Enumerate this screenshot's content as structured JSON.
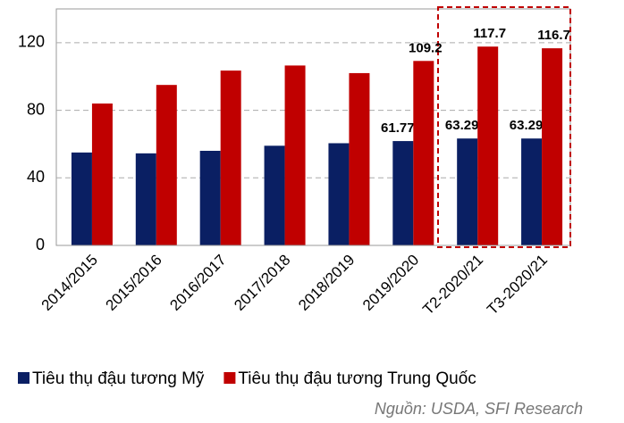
{
  "chart_data": {
    "type": "bar",
    "categories": [
      "2014/2015",
      "2015/2016",
      "2016/2017",
      "2017/2018",
      "2018/2019",
      "2019/2020",
      "T2-2020/21",
      "T3-2020/21"
    ],
    "series": [
      {
        "name": "Tiêu thụ đậu tương Mỹ",
        "color": "#0a1f63",
        "values": [
          55,
          54.5,
          56,
          59,
          60.5,
          61.77,
          63.29,
          63.29
        ],
        "value_labels": [
          null,
          null,
          null,
          null,
          null,
          "61.77",
          "63.29",
          "63.29"
        ]
      },
      {
        "name": "Tiêu thụ đậu tương Trung Quốc",
        "color": "#c00000",
        "values": [
          84,
          95,
          103.5,
          106.5,
          102,
          109.2,
          117.7,
          116.7
        ],
        "value_labels": [
          null,
          null,
          null,
          null,
          null,
          "109.2",
          "117.7",
          "116.7"
        ]
      }
    ],
    "ylim": [
      0,
      140
    ],
    "yticks": [
      0,
      40,
      80,
      120
    ],
    "grid": true,
    "source": "Nguồn: USDA, SFI Research"
  }
}
